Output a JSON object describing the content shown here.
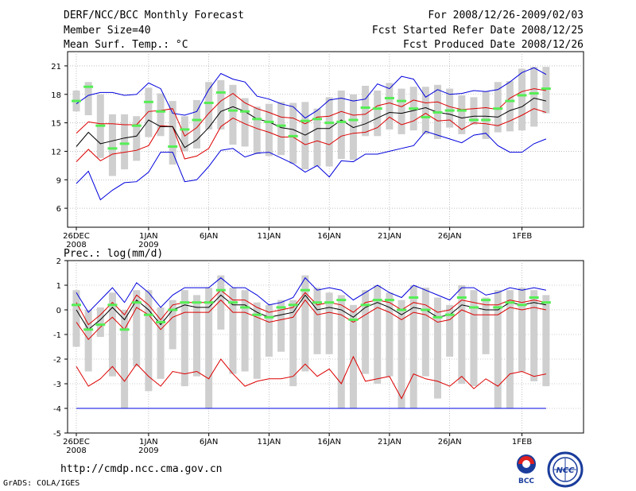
{
  "header": {
    "title": "DERF/NCC/BCC Monthly Forecast",
    "member_size": "Member Size=40",
    "top_variable": "Mean Surf. Temp.: °C",
    "forecast_period": "For 2008/12/26-2009/02/03",
    "started_date": "Fcst Started Refer Date 2008/12/25",
    "produced_date": "Fcst Produced Date 2008/12/26"
  },
  "footer": {
    "url": "http://cmdp.ncc.cma.gov.cn",
    "credit": "GrADS: COLA/IGES",
    "logo_left_text": "BCC",
    "logo_right_text": "NCC"
  },
  "colors": {
    "box": "#cfcfcf",
    "median": "#55ee55",
    "mean": "#000000",
    "std": "#dd0000",
    "max": "#0000dd",
    "grid": "#999999"
  },
  "chart_data": [
    {
      "type": "line",
      "title": "Mean Surf. Temp.: °C",
      "ylabel": "°C",
      "ylim": [
        4,
        22.5
      ],
      "yticks": [
        6,
        9,
        12,
        15,
        18,
        21
      ],
      "x_count": 40,
      "x_ticks": [
        {
          "index": 0,
          "label": "26DEC",
          "sub": "2008"
        },
        {
          "index": 6,
          "label": "1JAN",
          "sub": "2009"
        },
        {
          "index": 11,
          "label": "6JAN",
          "sub": ""
        },
        {
          "index": 16,
          "label": "11JAN",
          "sub": ""
        },
        {
          "index": 21,
          "label": "16JAN",
          "sub": ""
        },
        {
          "index": 26,
          "label": "21JAN",
          "sub": ""
        },
        {
          "index": 31,
          "label": "26JAN",
          "sub": ""
        },
        {
          "index": 37,
          "label": "1FEB",
          "sub": ""
        }
      ],
      "series": [
        {
          "name": "max",
          "values": [
            8.6,
            9.9,
            6.9,
            7.9,
            8.7,
            8.8,
            9.8,
            11.9,
            11.9,
            8.8,
            9,
            10.4,
            12.1,
            12.3,
            11.4,
            11.8,
            11.9,
            11.3,
            10.7,
            9.8,
            10.5,
            9.3,
            11,
            10.9,
            11.7,
            11.7,
            12,
            12.3,
            12.6,
            14.1,
            13.7,
            13.3,
            12.9,
            13.7,
            13.9,
            12.6,
            11.9,
            11.9,
            12.8,
            13.3
          ]
        },
        {
          "name": "mean_minus_std",
          "values": [
            10.9,
            12.2,
            11,
            11.7,
            11.9,
            12.1,
            12.6,
            14.7,
            14.6,
            11.2,
            11.5,
            12.3,
            14.6,
            15.5,
            14.9,
            14.4,
            14,
            13.5,
            13.5,
            12.7,
            13.1,
            12.7,
            13.6,
            13.9,
            14,
            14.5,
            15.6,
            14.8,
            15.2,
            16,
            15.2,
            15.3,
            14.3,
            15,
            14.9,
            14.7,
            15.2,
            15.8,
            16.5,
            16.1
          ]
        },
        {
          "name": "mean",
          "values": [
            12.5,
            14,
            12.8,
            13.1,
            13.4,
            13.6,
            15.3,
            14.6,
            14.6,
            12.4,
            13.2,
            14.5,
            16.2,
            16.7,
            16.2,
            15.4,
            15.1,
            14.5,
            14.3,
            13.7,
            14.4,
            14.4,
            15.3,
            14.5,
            14.9,
            15.5,
            16.1,
            16,
            16.3,
            16.6,
            16.1,
            15.9,
            15.5,
            15.7,
            15.7,
            15.6,
            16.3,
            16.7,
            17.6,
            17.3
          ]
        },
        {
          "name": "mean_plus_std",
          "values": [
            13.9,
            15.1,
            14.9,
            14.9,
            14.8,
            14.8,
            16.2,
            16.3,
            16.5,
            13.6,
            14.5,
            16,
            17.3,
            18.1,
            17.1,
            16.5,
            16.1,
            15.6,
            15.5,
            14.9,
            15.6,
            15.7,
            16.2,
            15.8,
            15.9,
            16.8,
            17.1,
            16.7,
            17.4,
            17.1,
            17.2,
            16.7,
            16.4,
            16.5,
            16.6,
            16.4,
            17.6,
            18.3,
            18.6,
            18.4
          ]
        },
        {
          "name": "min",
          "values": [
            17,
            17.9,
            18.2,
            18.2,
            17.9,
            18,
            19.2,
            18.6,
            16,
            15.8,
            16.2,
            18.5,
            20.2,
            19.6,
            19.3,
            17.8,
            17.5,
            17,
            16.7,
            15.5,
            16.3,
            17.4,
            17.6,
            17.3,
            17.5,
            19.1,
            18.6,
            19.9,
            19.6,
            17.7,
            18.5,
            18,
            18.1,
            18.4,
            18.3,
            18.5,
            19.3,
            20.3,
            20.8,
            20.1
          ]
        },
        {
          "name": "median",
          "values": [
            17.3,
            18.8,
            14.7,
            12.3,
            12.8,
            14.7,
            17.2,
            16.2,
            12.5,
            14.3,
            15.3,
            17.1,
            18.2,
            16.3,
            16.2,
            15.4,
            15.1,
            14.7,
            13.6,
            15.2,
            15.4,
            15,
            15.1,
            15.3,
            16.6,
            16.5,
            17.6,
            17.3,
            16.5,
            15.6,
            16.1,
            16.3,
            16.3,
            15.3,
            15.3,
            16.5,
            17.3,
            17.9,
            18.1,
            18.6
          ]
        },
        {
          "name": "box_low",
          "values": [
            16.2,
            15.8,
            11.3,
            9.4,
            10.1,
            11,
            13.5,
            13.6,
            10.6,
            12,
            12.3,
            14.3,
            14.3,
            12.7,
            12.5,
            11.7,
            11.5,
            11.6,
            10.7,
            10.1,
            10.4,
            10.4,
            11.2,
            11.1,
            13.6,
            13.6,
            14.3,
            13.8,
            14.2,
            13.8,
            13.3,
            14.5,
            13.8,
            14.8,
            13.3,
            14,
            14.1,
            14.2,
            14.6,
            16
          ]
        },
        {
          "name": "box_high",
          "values": [
            18.4,
            19.3,
            18,
            15.9,
            15.9,
            15.7,
            18.7,
            18.1,
            17.3,
            15.7,
            17.4,
            19.3,
            19.5,
            19,
            17.6,
            16.7,
            17,
            17.2,
            17.1,
            17.2,
            16.5,
            17.7,
            18.4,
            18,
            18.9,
            18.4,
            19.2,
            18.6,
            18.8,
            18.8,
            19,
            18.6,
            17.9,
            17.7,
            18.3,
            19.3,
            19.4,
            20.7,
            20.9,
            20.9
          ]
        }
      ]
    },
    {
      "type": "line",
      "title": "Prec.: log(mm/d)",
      "ylabel": "log(mm/d)",
      "ylim": [
        -5,
        2
      ],
      "yticks": [
        -5,
        -4,
        -3,
        -2,
        -1,
        0,
        1,
        2
      ],
      "x_count": 40,
      "x_ticks": [
        {
          "index": 0,
          "label": "26DEC",
          "sub": "2008"
        },
        {
          "index": 6,
          "label": "1JAN",
          "sub": "2009"
        },
        {
          "index": 11,
          "label": "6JAN",
          "sub": ""
        },
        {
          "index": 16,
          "label": "11JAN",
          "sub": ""
        },
        {
          "index": 21,
          "label": "16JAN",
          "sub": ""
        },
        {
          "index": 26,
          "label": "21JAN",
          "sub": ""
        },
        {
          "index": 31,
          "label": "26JAN",
          "sub": ""
        },
        {
          "index": 37,
          "label": "1FEB",
          "sub": ""
        }
      ],
      "series": [
        {
          "name": "max",
          "values": [
            0.7,
            -0.1,
            0.4,
            0.9,
            0.3,
            1.1,
            0.7,
            0.1,
            0.6,
            0.9,
            0.9,
            0.9,
            1.3,
            0.9,
            0.9,
            0.6,
            0.2,
            0.3,
            0.5,
            1.3,
            0.8,
            0.9,
            0.8,
            0.4,
            0.7,
            1,
            0.7,
            0.5,
            1,
            0.8,
            0.6,
            0.4,
            0.9,
            0.9,
            0.6,
            0.7,
            0.9,
            0.8,
            0.9,
            0.8
          ]
        },
        {
          "name": "mean_plus_std",
          "values": [
            0.3,
            -0.6,
            -0.2,
            0.3,
            -0.2,
            0.6,
            0.2,
            -0.4,
            0.2,
            0.3,
            0.3,
            0.3,
            0.8,
            0.4,
            0.4,
            0.1,
            -0.1,
            0,
            0.1,
            0.7,
            0.2,
            0.3,
            0.2,
            -0.1,
            0.3,
            0.4,
            0.3,
            0,
            0.3,
            0.2,
            -0.1,
            0,
            0.4,
            0.3,
            0.2,
            0.2,
            0.4,
            0.3,
            0.4,
            0.3
          ]
        },
        {
          "name": "mean",
          "values": [
            0,
            -0.8,
            -0.4,
            0.1,
            -0.4,
            0.4,
            0,
            -0.6,
            0,
            0.2,
            0.1,
            0.1,
            0.6,
            0.2,
            0.2,
            -0.1,
            -0.3,
            -0.2,
            -0.1,
            0.6,
            0,
            0.1,
            0,
            -0.3,
            0.1,
            0.3,
            0.1,
            -0.2,
            0.1,
            0,
            -0.3,
            -0.2,
            0.2,
            0.1,
            0,
            0,
            0.3,
            0.2,
            0.3,
            0.2
          ]
        },
        {
          "name": "mean_minus_std",
          "values": [
            -0.5,
            -1.2,
            -0.7,
            -0.3,
            -0.8,
            0.1,
            -0.2,
            -0.8,
            -0.3,
            -0.1,
            -0.1,
            -0.1,
            0.4,
            -0.1,
            -0.1,
            -0.3,
            -0.5,
            -0.4,
            -0.3,
            0.4,
            -0.2,
            -0.1,
            -0.2,
            -0.5,
            -0.2,
            0.1,
            -0.1,
            -0.4,
            -0.1,
            -0.2,
            -0.5,
            -0.4,
            0,
            -0.2,
            -0.2,
            -0.2,
            0.1,
            0,
            0.1,
            0
          ]
        },
        {
          "name": "min",
          "values": [
            -2.3,
            -3.1,
            -2.8,
            -2.3,
            -2.9,
            -2.2,
            -2.7,
            -3.1,
            -2.5,
            -2.6,
            -2.5,
            -2.8,
            -2,
            -2.6,
            -3.1,
            -2.9,
            -2.8,
            -2.8,
            -2.7,
            -2.2,
            -2.7,
            -2.4,
            -3,
            -1.9,
            -2.9,
            -2.8,
            -2.7,
            -3.6,
            -2.6,
            -2.8,
            -2.9,
            -3.1,
            -2.7,
            -3.2,
            -2.8,
            -3.1,
            -2.6,
            -2.5,
            -2.7,
            -2.6
          ]
        },
        {
          "name": "lower_bound",
          "values": [
            -4,
            -4,
            -4,
            -4,
            -4,
            -4,
            -4,
            -4,
            -4,
            -4,
            -4,
            -4,
            -4,
            -4,
            -4,
            -4,
            -4,
            -4,
            -4,
            -4,
            -4,
            -4,
            -4,
            -4,
            -4,
            -4,
            -4,
            -4,
            -4,
            -4,
            -4,
            -4,
            -4,
            -4,
            -4,
            -4,
            -4,
            -4,
            -4,
            -4
          ]
        },
        {
          "name": "median",
          "values": [
            0.2,
            -0.8,
            -0.6,
            0.2,
            -0.8,
            0.3,
            -0.2,
            -0.5,
            0,
            0.3,
            0.3,
            0.3,
            0.8,
            0.3,
            0.1,
            -0.2,
            -0.3,
            0.1,
            0.2,
            0.8,
            0.3,
            0.3,
            0.4,
            -0.4,
            0.2,
            0.4,
            0.4,
            0,
            0.5,
            0,
            -0.3,
            -0.2,
            0.5,
            0.1,
            0.4,
            0.1,
            0.3,
            0.2,
            0.5,
            0.3
          ]
        },
        {
          "name": "box_low",
          "values": [
            -1.5,
            -2.5,
            -1.1,
            -2.7,
            -4,
            -2.3,
            -3.3,
            -2.8,
            -1.6,
            -3.1,
            -2.7,
            -4,
            -0.8,
            -2.6,
            -2.5,
            -2.8,
            -1.9,
            -1.7,
            -3.1,
            -2.5,
            -1.8,
            -1.8,
            -4,
            -4,
            -2.6,
            -3,
            -2.7,
            -4,
            -4,
            -2.7,
            -3.6,
            -1.9,
            -3,
            -3.1,
            -1.8,
            -4,
            -4,
            -2.5,
            -2.9,
            -3.1
          ]
        },
        {
          "name": "box_high",
          "values": [
            0.8,
            0,
            0.1,
            0.7,
            0,
            0.8,
            0.8,
            0.1,
            0.4,
            0.8,
            0.6,
            0.9,
            1.4,
            0.9,
            0.8,
            0.3,
            0.2,
            0.4,
            0.4,
            1.4,
            0.9,
            0.7,
            0.6,
            0.2,
            0.8,
            1,
            0.7,
            0.4,
            1,
            0.9,
            0.5,
            0.2,
            1,
            0.8,
            0.5,
            0.8,
            0.8,
            0.9,
            0.8,
            0.6
          ]
        }
      ]
    }
  ]
}
